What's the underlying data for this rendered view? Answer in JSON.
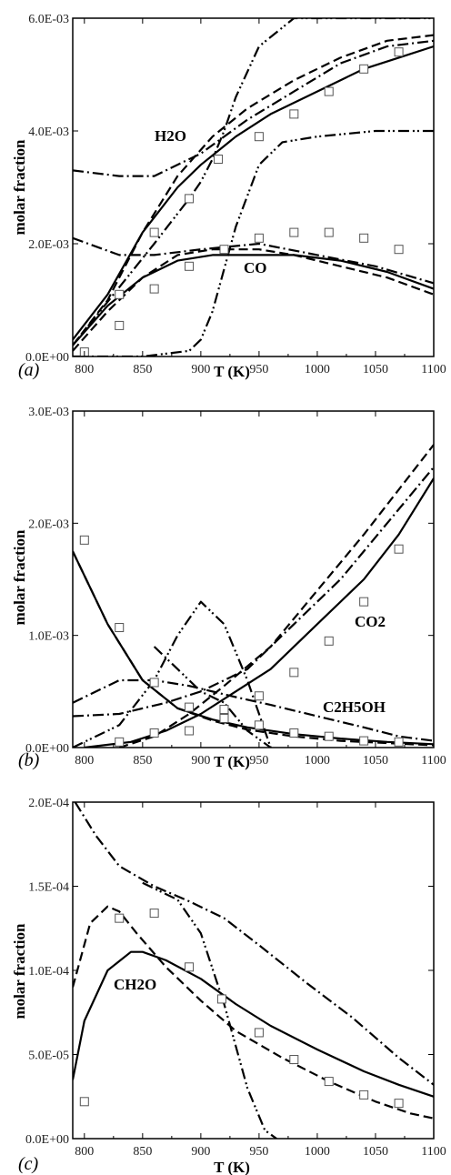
{
  "chart_data": [
    {
      "type": "line",
      "panel_label": "(a)",
      "xlabel": "T (K)",
      "ylabel": "molar fraction",
      "xlim": [
        790,
        1100
      ],
      "ylim": [
        0,
        0.006
      ],
      "xticks": [
        "800",
        "850",
        "900",
        "950",
        "1000",
        "1050",
        "1100"
      ],
      "yticks": [
        "0.0E+00",
        "2.0E-03",
        "4.0E-03",
        "6.0E-03"
      ],
      "annotations": [
        "H2O",
        "CO"
      ],
      "series": [
        {
          "label": "H2O",
          "style": "solid",
          "x": [
            790,
            820,
            850,
            880,
            900,
            930,
            960,
            1000,
            1040,
            1070,
            1100
          ],
          "y": [
            0.0003,
            0.0011,
            0.0022,
            0.003,
            0.0034,
            0.0039,
            0.0043,
            0.0047,
            0.0051,
            0.0053,
            0.0055
          ]
        },
        {
          "label": "H2O",
          "style": "dashed",
          "x": [
            790,
            820,
            850,
            880,
            910,
            940,
            980,
            1020,
            1060,
            1100
          ],
          "y": [
            0.0002,
            0.001,
            0.0022,
            0.0032,
            0.0039,
            0.0044,
            0.0049,
            0.0053,
            0.0056,
            0.0057
          ]
        },
        {
          "label": "H2O",
          "style": "dashdot",
          "x": [
            790,
            830,
            860,
            900,
            940,
            980,
            1020,
            1060,
            1100
          ],
          "y": [
            0.0033,
            0.0032,
            0.0032,
            0.0036,
            0.0042,
            0.0047,
            0.0052,
            0.0055,
            0.0056
          ]
        },
        {
          "label": "H2O",
          "style": "dashdotdot",
          "x": [
            790,
            860,
            890,
            900,
            910,
            920,
            930,
            950,
            980,
            1020,
            1060,
            1100
          ],
          "y": [
            0.0002,
            0.002,
            0.0028,
            0.0031,
            0.0035,
            0.004,
            0.0046,
            0.0055,
            0.006,
            0.006,
            0.006,
            0.006
          ]
        },
        {
          "label": "CO",
          "style": "solid",
          "x": [
            790,
            820,
            850,
            880,
            910,
            950,
            980,
            1020,
            1060,
            1100
          ],
          "y": [
            0.0002,
            0.0009,
            0.0014,
            0.0017,
            0.0018,
            0.0018,
            0.0018,
            0.0017,
            0.0015,
            0.0012
          ]
        },
        {
          "label": "CO",
          "style": "dashed",
          "x": [
            790,
            820,
            850,
            880,
            910,
            950,
            980,
            1020,
            1060,
            1100
          ],
          "y": [
            0.0001,
            0.0008,
            0.0014,
            0.0018,
            0.0019,
            0.0019,
            0.0018,
            0.0016,
            0.0014,
            0.0011
          ]
        },
        {
          "label": "CO",
          "style": "dashdot",
          "x": [
            790,
            830,
            860,
            900,
            950,
            1000,
            1050,
            1100
          ],
          "y": [
            0.0021,
            0.0018,
            0.0018,
            0.0019,
            0.002,
            0.0018,
            0.0016,
            0.0013
          ]
        },
        {
          "label": "CO",
          "style": "dashdotdot",
          "x": [
            790,
            850,
            890,
            900,
            910,
            930,
            950,
            970,
            1000,
            1050,
            1100
          ],
          "y": [
            0.0,
            0.0,
            0.0001,
            0.0003,
            0.0008,
            0.0023,
            0.0034,
            0.0038,
            0.0039,
            0.004,
            0.004
          ]
        }
      ],
      "points": [
        {
          "label": "H2O",
          "x": [
            830,
            860,
            890,
            915,
            950,
            980,
            1010,
            1040,
            1070
          ],
          "y": [
            0.00055,
            0.0022,
            0.0028,
            0.0035,
            0.0039,
            0.0043,
            0.0047,
            0.0051,
            0.0054
          ]
        },
        {
          "label": "CO",
          "x": [
            800,
            830,
            860,
            890,
            920,
            950,
            980,
            1010,
            1040,
            1070
          ],
          "y": [
            8e-05,
            0.0011,
            0.0012,
            0.0016,
            0.0019,
            0.0021,
            0.0022,
            0.0022,
            0.0021,
            0.0019
          ]
        }
      ]
    },
    {
      "type": "line",
      "panel_label": "(b)",
      "xlabel": "T (K)",
      "ylabel": "molar fraction",
      "xlim": [
        790,
        1100
      ],
      "ylim": [
        0,
        0.003
      ],
      "xticks": [
        "800",
        "850",
        "900",
        "950",
        "1000",
        "1050",
        "1100"
      ],
      "yticks": [
        "0.0E+00",
        "1.0E-03",
        "2.0E-03",
        "3.0E-03"
      ],
      "annotations": [
        "CO2",
        "C2H5OH"
      ],
      "series": [
        {
          "label": "C2H5OH",
          "style": "solid",
          "x": [
            790,
            820,
            850,
            880,
            910,
            940,
            980,
            1020,
            1060,
            1100
          ],
          "y": [
            0.00175,
            0.0011,
            0.0006,
            0.00035,
            0.00025,
            0.00018,
            0.00012,
            8e-05,
            5e-05,
            3e-05
          ]
        },
        {
          "label": "C2H5OH",
          "style": "dashed",
          "x": [
            790,
            820,
            850,
            880,
            910,
            940,
            980,
            1020,
            1060,
            1100
          ],
          "y": [
            0.00175,
            0.0011,
            0.0006,
            0.00035,
            0.00024,
            0.00016,
            0.0001,
            6e-05,
            4e-05,
            2e-05
          ]
        },
        {
          "label": "C2H5OH",
          "style": "dashdot",
          "x": [
            790,
            830,
            860,
            890,
            930,
            960,
            1000,
            1040,
            1070,
            1100
          ],
          "y": [
            0.0004,
            0.0006,
            0.0006,
            0.00055,
            0.00045,
            0.00038,
            0.00028,
            0.00018,
            0.0001,
            6e-05
          ]
        },
        {
          "label": "C2H5OH",
          "style": "dashdotdot",
          "x": [
            860,
            880,
            900,
            920,
            940,
            960
          ],
          "y": [
            0.0009,
            0.0007,
            0.0005,
            0.0004,
            0.00015,
            0.0
          ]
        },
        {
          "label": "CO2",
          "style": "solid",
          "x": [
            800,
            840,
            870,
            900,
            930,
            960,
            1000,
            1040,
            1070,
            1100
          ],
          "y": [
            0.0,
            5e-05,
            0.00015,
            0.0003,
            0.0005,
            0.0007,
            0.0011,
            0.0015,
            0.0019,
            0.0024
          ]
        },
        {
          "label": "CO2",
          "style": "dashed",
          "x": [
            830,
            860,
            890,
            920,
            960,
            1000,
            1040,
            1070,
            1100
          ],
          "y": [
            0.0,
            0.0001,
            0.0003,
            0.00055,
            0.0009,
            0.0014,
            0.0019,
            0.0023,
            0.0027
          ]
        },
        {
          "label": "CO2",
          "style": "dashdot",
          "x": [
            790,
            830,
            870,
            900,
            940,
            980,
            1020,
            1060,
            1100
          ],
          "y": [
            0.00028,
            0.0003,
            0.0004,
            0.0005,
            0.0007,
            0.0011,
            0.0015,
            0.002,
            0.0025
          ]
        },
        {
          "label": "CO2",
          "style": "dashdotdot",
          "x": [
            790,
            830,
            860,
            880,
            900,
            920,
            940,
            960
          ],
          "y": [
            0.0,
            0.0002,
            0.0006,
            0.001,
            0.0013,
            0.0011,
            0.0006,
            0.0
          ]
        }
      ],
      "points": [
        {
          "label": "C2H5OH",
          "x": [
            800,
            830,
            860,
            890,
            920,
            950,
            980,
            1010,
            1040,
            1070
          ],
          "y": [
            0.00185,
            0.00107,
            0.00058,
            0.00036,
            0.00026,
            0.0002,
            0.00013,
            0.0001,
            6e-05,
            5e-05
          ]
        },
        {
          "label": "CO2",
          "x": [
            830,
            860,
            890,
            920,
            950,
            980,
            1010,
            1040,
            1070
          ],
          "y": [
            5e-05,
            0.00013,
            0.00015,
            0.00034,
            0.00046,
            0.00067,
            0.00095,
            0.0013,
            0.00177
          ]
        }
      ]
    },
    {
      "type": "line",
      "panel_label": "(c)",
      "xlabel": "T (K)",
      "ylabel": "molar fraction",
      "xlim": [
        790,
        1100
      ],
      "ylim": [
        0,
        0.0002
      ],
      "xticks": [
        "800",
        "850",
        "900",
        "950",
        "1000",
        "1050",
        "1100"
      ],
      "yticks": [
        "0.0E+00",
        "5.0E-05",
        "1.0E-04",
        "1.5E-04",
        "2.0E-04"
      ],
      "annotations": [
        "CH2O"
      ],
      "series": [
        {
          "label": "CH2O",
          "style": "solid",
          "x": [
            790,
            800,
            820,
            840,
            850,
            870,
            900,
            930,
            960,
            1000,
            1040,
            1070,
            1100
          ],
          "y": [
            3.5e-05,
            7e-05,
            0.0001,
            0.000111,
            0.000111,
            0.000106,
            9.5e-05,
            8e-05,
            6.7e-05,
            5.3e-05,
            4e-05,
            3.2e-05,
            2.5e-05
          ]
        },
        {
          "label": "CH2O",
          "style": "dashed",
          "x": [
            790,
            805,
            820,
            830,
            845,
            870,
            900,
            930,
            970,
            1010,
            1050,
            1080,
            1100
          ],
          "y": [
            9e-05,
            0.000128,
            0.000138,
            0.000135,
            0.000122,
            0.000102,
            8.2e-05,
            6.4e-05,
            4.8e-05,
            3.4e-05,
            2.2e-05,
            1.5e-05,
            1.2e-05
          ]
        },
        {
          "label": "CH2O",
          "style": "dashdot",
          "x": [
            792,
            810,
            830,
            860,
            890,
            920,
            950,
            990,
            1030,
            1070,
            1100
          ],
          "y": [
            0.0002,
            0.00018,
            0.000162,
            0.00015,
            0.000141,
            0.000131,
            0.000115,
            9.3e-05,
            7.2e-05,
            4.8e-05,
            3.2e-05
          ]
        },
        {
          "label": "CH2O",
          "style": "dashdotdot",
          "x": [
            850,
            880,
            900,
            920,
            940,
            955,
            965
          ],
          "y": [
            0.000152,
            0.000142,
            0.000122,
            8e-05,
            3e-05,
            5e-06,
            0.0
          ]
        }
      ],
      "points": [
        {
          "label": "CH2O",
          "x": [
            800,
            830,
            860,
            890,
            918,
            950,
            980,
            1010,
            1040,
            1070
          ],
          "y": [
            2.2e-05,
            0.000131,
            0.000134,
            0.000102,
            8.3e-05,
            6.3e-05,
            4.7e-05,
            3.4e-05,
            2.6e-05,
            2.1e-05
          ]
        }
      ]
    }
  ]
}
